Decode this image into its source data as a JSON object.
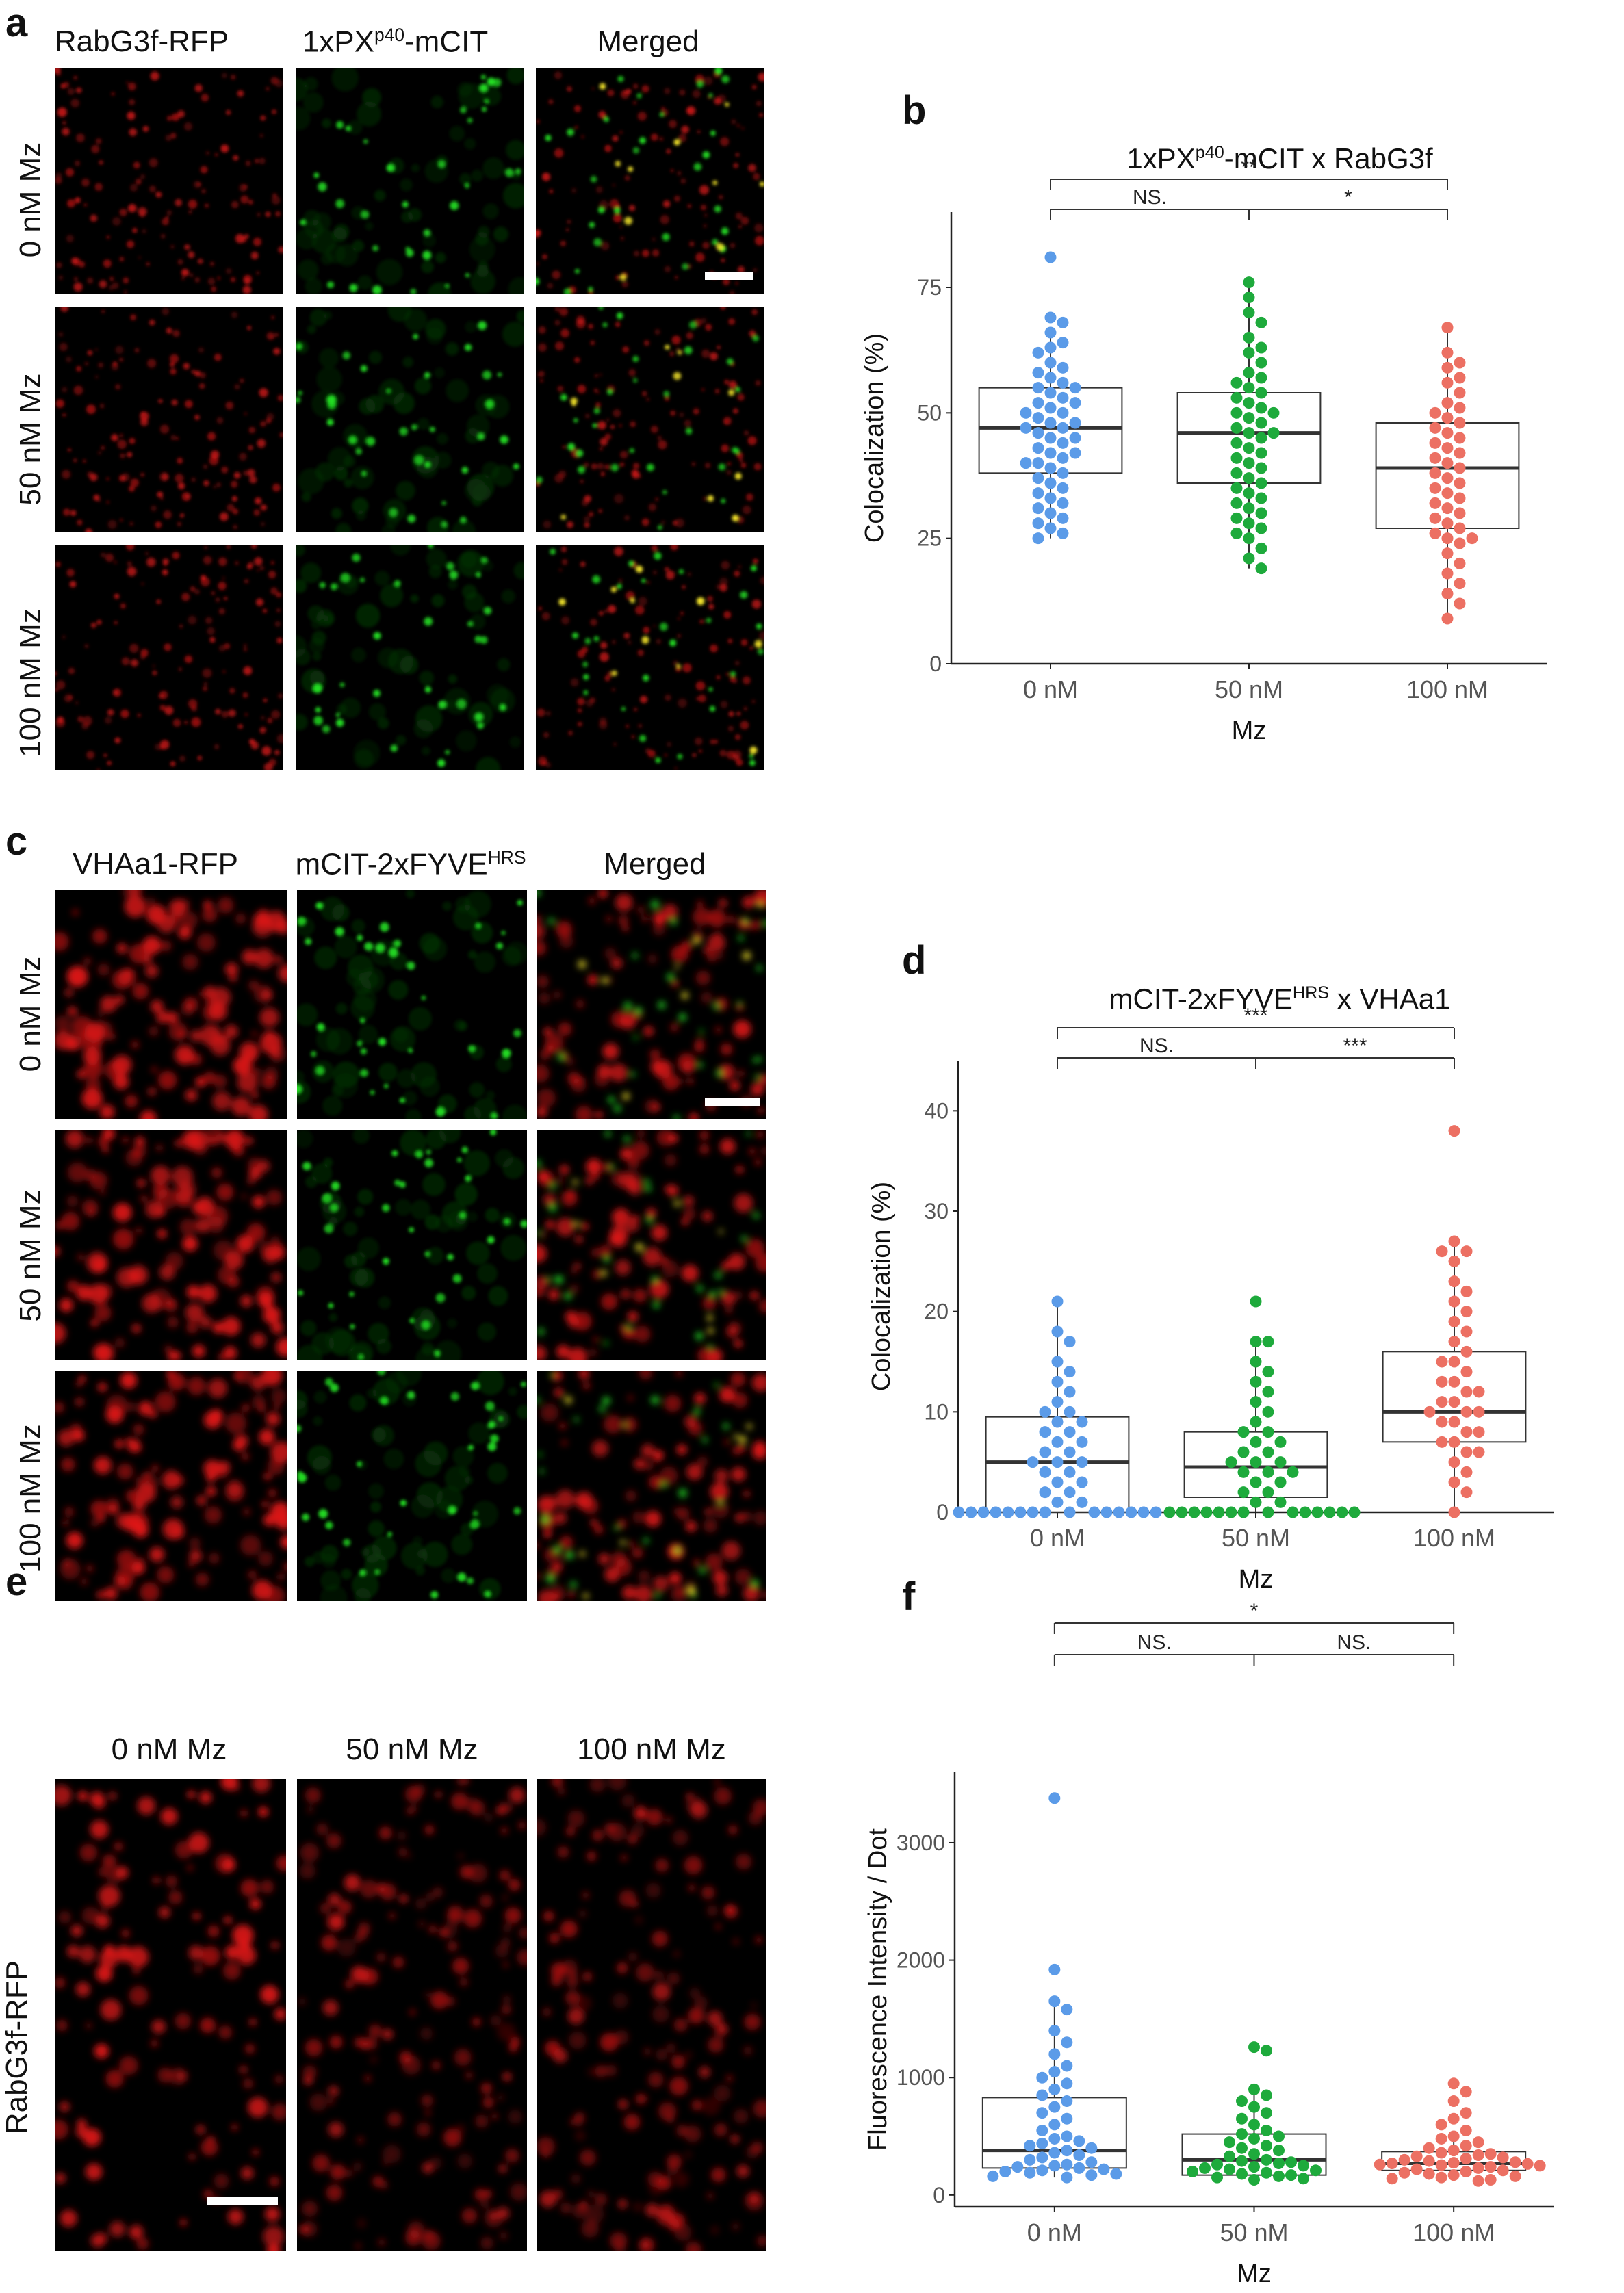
{
  "panels": {
    "a": {
      "letter": "a",
      "channels": [
        "RabG3f-RFP",
        "1xPX",
        "Merged"
      ],
      "channel2_sup": "p40",
      "channel2_suffix": "-mCIT",
      "rows": [
        "0 nM Mz",
        "50 nM Mz",
        "100 nM Mz"
      ]
    },
    "b": {
      "letter": "b",
      "title_pre": "1xPX",
      "title_sup": "p40",
      "title_post": "-mCIT x RabG3f"
    },
    "c": {
      "letter": "c",
      "channels": [
        "VHAa1-RFP",
        "mCIT-2xFYVE",
        "Merged"
      ],
      "channel2_sup": "HRS",
      "rows": [
        "0 nM Mz",
        "50 nM Mz",
        "100 nM Mz"
      ]
    },
    "d": {
      "letter": "d",
      "title_pre": "mCIT-2xFYVE",
      "title_sup": "HRS",
      "title_post": " x VHAa1"
    },
    "e": {
      "letter": "e",
      "columns": [
        "0 nM Mz",
        "50 nM Mz",
        "100 nM Mz"
      ],
      "row_label": "RabG3f-RFP"
    },
    "f": {
      "letter": "f"
    }
  },
  "colors": {
    "group_0nM": "#5b9be8",
    "group_50nM": "#1eaa3c",
    "group_100nM": "#ec7063",
    "rfp": "#e01818",
    "gfp": "#22dd22"
  },
  "chart_data": [
    {
      "id": "b",
      "type": "scatter",
      "subtype": "box_with_points",
      "categories": [
        "0 nM",
        "50 nM",
        "100 nM"
      ],
      "xlabel": "Mz",
      "ylabel": "Colocalization (%)",
      "ylim": [
        0,
        90
      ],
      "yticks": [
        0,
        25,
        50,
        75
      ],
      "boxes": [
        {
          "q1": 38,
          "median": 47,
          "q3": 55,
          "whisker_low": 25,
          "whisker_high": 67
        },
        {
          "q1": 36,
          "median": 46,
          "q3": 54,
          "whisker_low": 19,
          "whisker_high": 76
        },
        {
          "q1": 27,
          "median": 39,
          "q3": 48,
          "whisker_low": 9,
          "whisker_high": 67
        }
      ],
      "points": [
        [
          81,
          69,
          68,
          66,
          64,
          63,
          62,
          60,
          59,
          58,
          57,
          56,
          55,
          55,
          54,
          53,
          52,
          52,
          51,
          50,
          50,
          49,
          48,
          48,
          47,
          47,
          46,
          45,
          45,
          44,
          43,
          42,
          42,
          41,
          40,
          40,
          39,
          38,
          37,
          36,
          35,
          34,
          33,
          32,
          31,
          30,
          29,
          28,
          27,
          26,
          25
        ],
        [
          76,
          73,
          70,
          68,
          65,
          63,
          62,
          60,
          58,
          57,
          56,
          55,
          54,
          53,
          52,
          51,
          50,
          50,
          49,
          48,
          47,
          46,
          46,
          45,
          44,
          43,
          42,
          41,
          40,
          39,
          38,
          37,
          36,
          35,
          34,
          33,
          32,
          31,
          30,
          29,
          28,
          27,
          26,
          25,
          23,
          21,
          19
        ],
        [
          67,
          62,
          60,
          59,
          57,
          56,
          54,
          52,
          51,
          50,
          49,
          48,
          47,
          46,
          45,
          44,
          43,
          42,
          41,
          40,
          39,
          38,
          37,
          36,
          35,
          34,
          33,
          32,
          31,
          30,
          29,
          28,
          27,
          26,
          25,
          25,
          24,
          22,
          20,
          18,
          16,
          14,
          12,
          9
        ]
      ],
      "significance": [
        {
          "from": 0,
          "to": 2,
          "label": "**",
          "level": 2
        },
        {
          "from": 0,
          "to": 1,
          "label": "NS.",
          "level": 1
        },
        {
          "from": 1,
          "to": 2,
          "label": "*",
          "level": 1
        }
      ]
    },
    {
      "id": "d",
      "type": "scatter",
      "subtype": "box_with_points",
      "categories": [
        "0 nM",
        "50 nM",
        "100 nM"
      ],
      "xlabel": "Mz",
      "ylabel": "Colocalization (%)",
      "ylim": [
        0,
        45
      ],
      "yticks": [
        0,
        10,
        20,
        30,
        40
      ],
      "boxes": [
        {
          "q1": 0,
          "median": 5,
          "q3": 9.5,
          "whisker_low": 0,
          "whisker_high": 21
        },
        {
          "q1": 1.5,
          "median": 4.5,
          "q3": 8,
          "whisker_low": 0,
          "whisker_high": 17
        },
        {
          "q1": 7,
          "median": 10,
          "q3": 16,
          "whisker_low": 0,
          "whisker_high": 27
        }
      ],
      "points": [
        [
          21,
          18,
          17,
          15,
          14,
          13,
          12,
          11,
          10,
          10,
          9,
          9,
          8,
          8,
          7,
          7,
          6,
          6,
          5,
          5,
          5,
          4,
          4,
          3,
          3,
          2,
          2,
          1,
          1,
          0,
          0,
          0,
          0,
          0,
          0,
          0,
          0,
          0,
          0,
          0,
          0,
          0,
          0,
          0
        ],
        [
          21,
          17,
          17,
          15,
          14,
          13,
          12,
          11,
          10,
          9,
          8,
          8,
          7,
          7,
          6,
          6,
          5,
          5,
          5,
          4,
          4,
          4,
          3,
          3,
          2,
          2,
          1,
          1,
          0,
          0,
          0,
          0,
          0,
          0,
          0,
          0,
          0,
          0,
          0,
          0,
          0,
          0
        ],
        [
          38,
          27,
          26,
          26,
          25,
          23,
          22,
          21,
          20,
          19,
          18,
          17,
          16,
          15,
          15,
          14,
          13,
          13,
          12,
          12,
          11,
          11,
          10,
          10,
          10,
          9,
          9,
          8,
          8,
          7,
          7,
          6,
          6,
          5,
          4,
          3,
          2,
          0
        ]
      ],
      "significance": [
        {
          "from": 0,
          "to": 2,
          "label": "***",
          "level": 2
        },
        {
          "from": 0,
          "to": 1,
          "label": "NS.",
          "level": 1
        },
        {
          "from": 1,
          "to": 2,
          "label": "***",
          "level": 1
        }
      ]
    },
    {
      "id": "f",
      "type": "scatter",
      "subtype": "box_with_points",
      "categories": [
        "0 nM",
        "50 nM",
        "100 nM"
      ],
      "xlabel": "Mz",
      "ylabel": "Fluorescence Intensity / Dot",
      "ylim": [
        -100,
        3600
      ],
      "yticks": [
        0,
        1000,
        2000,
        3000
      ],
      "boxes": [
        {
          "q1": 230,
          "median": 380,
          "q3": 830,
          "whisker_low": 150,
          "whisker_high": 1650
        },
        {
          "q1": 170,
          "median": 300,
          "q3": 520,
          "whisker_low": 130,
          "whisker_high": 900
        },
        {
          "q1": 210,
          "median": 270,
          "q3": 370,
          "whisker_low": 120,
          "whisker_high": 520
        }
      ],
      "points": [
        [
          3380,
          1920,
          1650,
          1580,
          1400,
          1300,
          1200,
          1100,
          1050,
          1000,
          950,
          900,
          850,
          800,
          750,
          700,
          650,
          600,
          550,
          500,
          480,
          460,
          440,
          420,
          400,
          380,
          360,
          340,
          320,
          300,
          280,
          260,
          250,
          240,
          230,
          220,
          210,
          200,
          190,
          180,
          170,
          160,
          150
        ],
        [
          1260,
          1230,
          900,
          850,
          800,
          750,
          700,
          650,
          600,
          550,
          520,
          500,
          480,
          450,
          420,
          400,
          380,
          350,
          330,
          300,
          290,
          280,
          270,
          260,
          250,
          240,
          230,
          220,
          210,
          200,
          190,
          180,
          170,
          160,
          150,
          140,
          130
        ],
        [
          950,
          880,
          800,
          700,
          650,
          600,
          550,
          500,
          480,
          450,
          420,
          400,
          380,
          360,
          350,
          340,
          330,
          320,
          310,
          300,
          290,
          280,
          275,
          270,
          265,
          260,
          255,
          250,
          240,
          230,
          220,
          210,
          200,
          190,
          180,
          170,
          160,
          150,
          140,
          130,
          120
        ]
      ],
      "significance": [
        {
          "from": 0,
          "to": 2,
          "label": "*",
          "level": 2
        },
        {
          "from": 0,
          "to": 1,
          "label": "NS.",
          "level": 1
        },
        {
          "from": 1,
          "to": 2,
          "label": "NS.",
          "level": 1
        }
      ]
    }
  ]
}
